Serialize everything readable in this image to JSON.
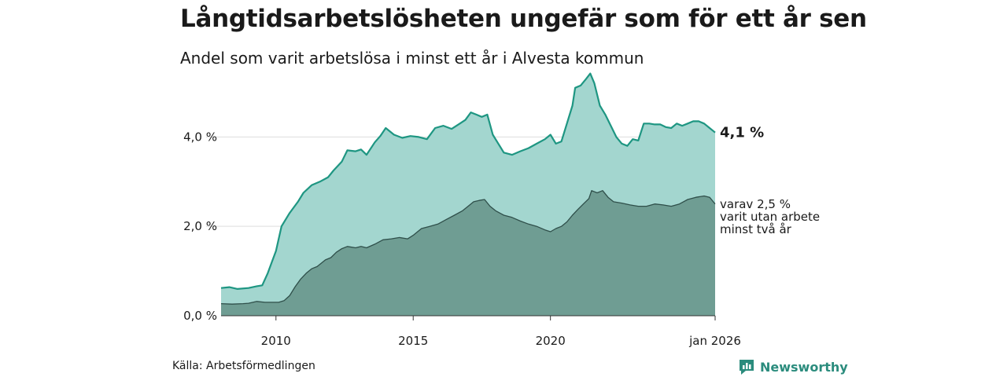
{
  "title": "Långtidsarbetslösheten ungefär som för ett år sen",
  "subtitle": "Andel som varit arbetslösa i minst ett år i Alvesta kommun",
  "source": "Källa: Arbetsförmedlingen",
  "brand": "Newsworthy",
  "colors": {
    "total_fill": "#a3d6cf",
    "total_line": "#1e9682",
    "long_fill": "#6f9d93",
    "long_line": "#2f4f4a",
    "grid": "#dddddd",
    "brand": "#2b8c7d"
  },
  "chart_data": {
    "type": "area",
    "title": "Långtidsarbetslösheten ungefär som för ett år sen",
    "xlabel": "",
    "ylabel": "",
    "ylim": [
      0,
      5.5
    ],
    "xlim": [
      2008.0,
      2026.0
    ],
    "y_ticks": [
      {
        "value": 0,
        "label": "0,0 %"
      },
      {
        "value": 2,
        "label": "2,0 %"
      },
      {
        "value": 4,
        "label": "4,0 %"
      }
    ],
    "x_ticks": [
      {
        "value": 2010,
        "label": "2010"
      },
      {
        "value": 2015,
        "label": "2015"
      },
      {
        "value": 2020,
        "label": "2020"
      },
      {
        "value": 2026,
        "label": "jan 2026"
      }
    ],
    "series": [
      {
        "name": "Minst ett år",
        "end_label": "4,1 %",
        "points": [
          [
            2008.0,
            0.62
          ],
          [
            2008.3,
            0.64
          ],
          [
            2008.6,
            0.6
          ],
          [
            2009.0,
            0.62
          ],
          [
            2009.3,
            0.66
          ],
          [
            2009.5,
            0.68
          ],
          [
            2009.7,
            0.95
          ],
          [
            2009.85,
            1.2
          ],
          [
            2010.0,
            1.45
          ],
          [
            2010.2,
            2.0
          ],
          [
            2010.5,
            2.3
          ],
          [
            2010.8,
            2.55
          ],
          [
            2011.0,
            2.75
          ],
          [
            2011.3,
            2.92
          ],
          [
            2011.6,
            3.0
          ],
          [
            2011.9,
            3.1
          ],
          [
            2012.1,
            3.25
          ],
          [
            2012.4,
            3.45
          ],
          [
            2012.6,
            3.7
          ],
          [
            2012.9,
            3.68
          ],
          [
            2013.1,
            3.72
          ],
          [
            2013.3,
            3.6
          ],
          [
            2013.6,
            3.88
          ],
          [
            2013.8,
            4.02
          ],
          [
            2014.0,
            4.2
          ],
          [
            2014.3,
            4.05
          ],
          [
            2014.6,
            3.98
          ],
          [
            2014.9,
            4.02
          ],
          [
            2015.2,
            4.0
          ],
          [
            2015.5,
            3.95
          ],
          [
            2015.8,
            4.2
          ],
          [
            2016.1,
            4.25
          ],
          [
            2016.4,
            4.18
          ],
          [
            2016.7,
            4.3
          ],
          [
            2016.9,
            4.38
          ],
          [
            2017.1,
            4.55
          ],
          [
            2017.3,
            4.5
          ],
          [
            2017.5,
            4.45
          ],
          [
            2017.7,
            4.5
          ],
          [
            2017.9,
            4.05
          ],
          [
            2018.1,
            3.85
          ],
          [
            2018.3,
            3.65
          ],
          [
            2018.6,
            3.6
          ],
          [
            2018.9,
            3.68
          ],
          [
            2019.2,
            3.75
          ],
          [
            2019.5,
            3.85
          ],
          [
            2019.8,
            3.95
          ],
          [
            2020.0,
            4.05
          ],
          [
            2020.2,
            3.85
          ],
          [
            2020.4,
            3.9
          ],
          [
            2020.6,
            4.3
          ],
          [
            2020.8,
            4.7
          ],
          [
            2020.9,
            5.1
          ],
          [
            2021.1,
            5.15
          ],
          [
            2021.3,
            5.3
          ],
          [
            2021.45,
            5.42
          ],
          [
            2021.6,
            5.2
          ],
          [
            2021.8,
            4.7
          ],
          [
            2022.0,
            4.5
          ],
          [
            2022.2,
            4.25
          ],
          [
            2022.4,
            4.0
          ],
          [
            2022.6,
            3.85
          ],
          [
            2022.8,
            3.8
          ],
          [
            2023.0,
            3.95
          ],
          [
            2023.2,
            3.92
          ],
          [
            2023.4,
            4.3
          ],
          [
            2023.6,
            4.3
          ],
          [
            2023.8,
            4.28
          ],
          [
            2024.0,
            4.28
          ],
          [
            2024.2,
            4.22
          ],
          [
            2024.4,
            4.2
          ],
          [
            2024.6,
            4.3
          ],
          [
            2024.8,
            4.25
          ],
          [
            2025.0,
            4.3
          ],
          [
            2025.2,
            4.35
          ],
          [
            2025.4,
            4.35
          ],
          [
            2025.6,
            4.3
          ],
          [
            2025.8,
            4.2
          ],
          [
            2026.0,
            4.1
          ]
        ]
      },
      {
        "name": "varav minst två år",
        "end_label_lines": [
          "varav 2,5 %",
          "varit utan arbete",
          "minst två år"
        ],
        "points": [
          [
            2008.0,
            0.27
          ],
          [
            2008.4,
            0.26
          ],
          [
            2008.8,
            0.27
          ],
          [
            2009.0,
            0.28
          ],
          [
            2009.3,
            0.32
          ],
          [
            2009.6,
            0.3
          ],
          [
            2009.9,
            0.3
          ],
          [
            2010.1,
            0.3
          ],
          [
            2010.3,
            0.34
          ],
          [
            2010.5,
            0.45
          ],
          [
            2010.7,
            0.65
          ],
          [
            2010.9,
            0.82
          ],
          [
            2011.1,
            0.95
          ],
          [
            2011.3,
            1.05
          ],
          [
            2011.5,
            1.1
          ],
          [
            2011.8,
            1.25
          ],
          [
            2012.0,
            1.3
          ],
          [
            2012.2,
            1.42
          ],
          [
            2012.4,
            1.5
          ],
          [
            2012.6,
            1.55
          ],
          [
            2012.9,
            1.52
          ],
          [
            2013.1,
            1.55
          ],
          [
            2013.3,
            1.52
          ],
          [
            2013.6,
            1.6
          ],
          [
            2013.9,
            1.7
          ],
          [
            2014.2,
            1.72
          ],
          [
            2014.5,
            1.75
          ],
          [
            2014.8,
            1.72
          ],
          [
            2015.0,
            1.8
          ],
          [
            2015.3,
            1.95
          ],
          [
            2015.6,
            2.0
          ],
          [
            2015.9,
            2.05
          ],
          [
            2016.2,
            2.15
          ],
          [
            2016.5,
            2.25
          ],
          [
            2016.8,
            2.35
          ],
          [
            2017.0,
            2.45
          ],
          [
            2017.2,
            2.55
          ],
          [
            2017.4,
            2.58
          ],
          [
            2017.6,
            2.6
          ],
          [
            2017.8,
            2.45
          ],
          [
            2018.0,
            2.35
          ],
          [
            2018.3,
            2.25
          ],
          [
            2018.6,
            2.2
          ],
          [
            2018.9,
            2.12
          ],
          [
            2019.2,
            2.05
          ],
          [
            2019.5,
            2.0
          ],
          [
            2019.8,
            1.92
          ],
          [
            2020.0,
            1.88
          ],
          [
            2020.2,
            1.95
          ],
          [
            2020.4,
            2.0
          ],
          [
            2020.6,
            2.1
          ],
          [
            2020.8,
            2.25
          ],
          [
            2021.0,
            2.38
          ],
          [
            2021.2,
            2.5
          ],
          [
            2021.4,
            2.62
          ],
          [
            2021.5,
            2.8
          ],
          [
            2021.7,
            2.75
          ],
          [
            2021.9,
            2.8
          ],
          [
            2022.1,
            2.65
          ],
          [
            2022.3,
            2.55
          ],
          [
            2022.6,
            2.52
          ],
          [
            2022.9,
            2.48
          ],
          [
            2023.2,
            2.45
          ],
          [
            2023.5,
            2.45
          ],
          [
            2023.8,
            2.5
          ],
          [
            2024.1,
            2.48
          ],
          [
            2024.4,
            2.45
          ],
          [
            2024.7,
            2.5
          ],
          [
            2025.0,
            2.6
          ],
          [
            2025.3,
            2.65
          ],
          [
            2025.6,
            2.68
          ],
          [
            2025.8,
            2.65
          ],
          [
            2026.0,
            2.5
          ]
        ]
      }
    ]
  }
}
